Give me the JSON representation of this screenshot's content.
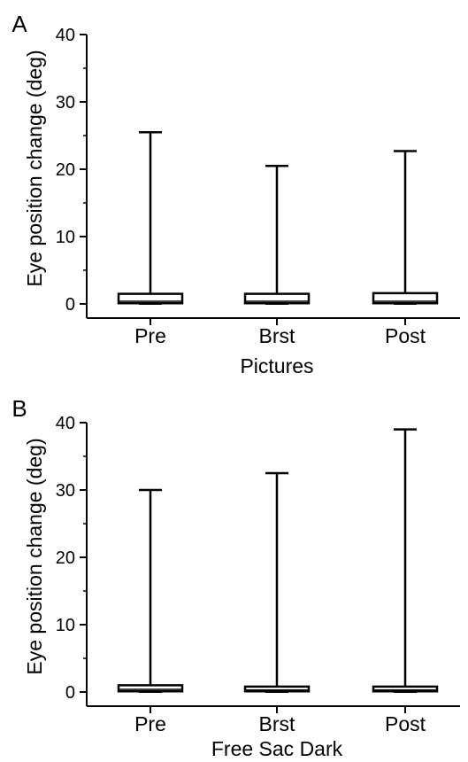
{
  "chart_data": [
    {
      "panel_label": "A",
      "type": "box",
      "xlabel": "Pictures",
      "ylabel": "Eye position change (deg)",
      "ylim": [
        0,
        40
      ],
      "yticks": [
        "0",
        "10",
        "20",
        "30",
        "40"
      ],
      "categories": [
        "Pre",
        "Brst",
        "Post"
      ],
      "boxes": [
        {
          "min": 0,
          "q1": 0.1,
          "median": 0.4,
          "q3": 1.5,
          "max": 25.5
        },
        {
          "min": 0,
          "q1": 0.1,
          "median": 0.4,
          "q3": 1.5,
          "max": 20.5
        },
        {
          "min": 0,
          "q1": 0.1,
          "median": 0.4,
          "q3": 1.6,
          "max": 22.7
        }
      ]
    },
    {
      "panel_label": "B",
      "type": "box",
      "xlabel": "Free Sac Dark",
      "ylabel": "Eye position change (deg)",
      "ylim": [
        0,
        40
      ],
      "yticks": [
        "0",
        "10",
        "20",
        "30",
        "40"
      ],
      "categories": [
        "Pre",
        "Brst",
        "Post"
      ],
      "boxes": [
        {
          "min": 0,
          "q1": 0.1,
          "median": 0.4,
          "q3": 1.0,
          "max": 30.0
        },
        {
          "min": 0,
          "q1": 0.1,
          "median": 0.3,
          "q3": 0.8,
          "max": 32.5
        },
        {
          "min": 0,
          "q1": 0.1,
          "median": 0.3,
          "q3": 0.8,
          "max": 39.0
        }
      ]
    }
  ]
}
